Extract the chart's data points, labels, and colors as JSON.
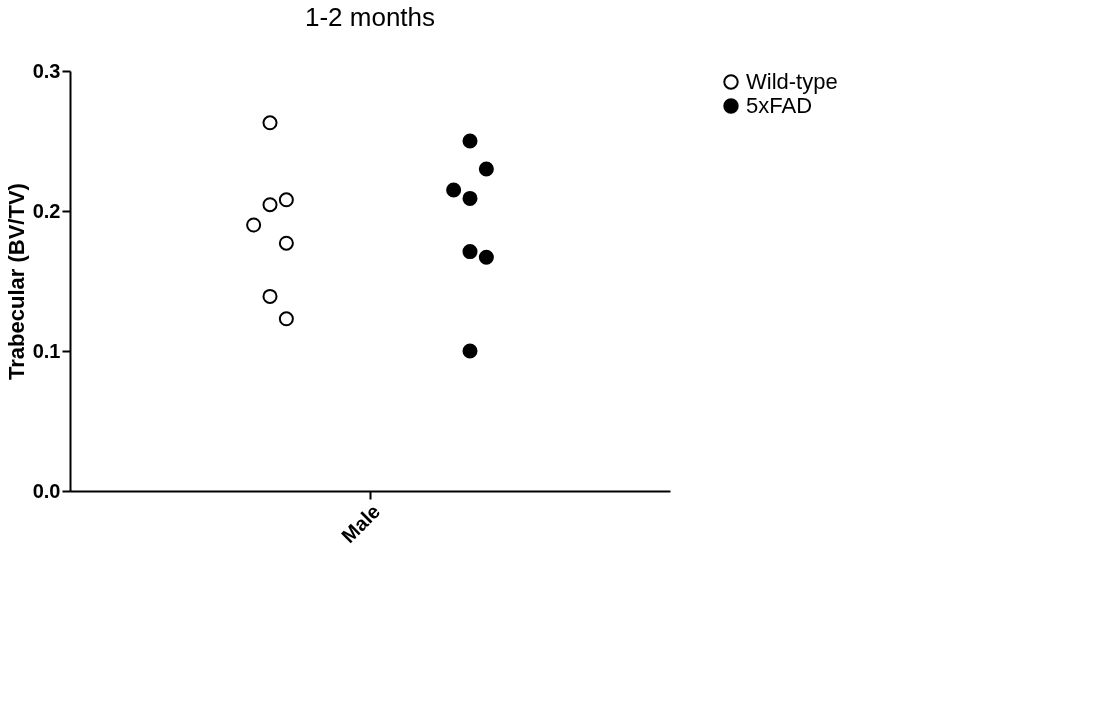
{
  "chart_data": {
    "type": "scatter",
    "title": "1-2 months",
    "ylabel": "Trabecular (BV/TV)",
    "categories": [
      "Male"
    ],
    "series": [
      {
        "name": "Wild-type",
        "color": "#ffffff",
        "x": [
          "Male",
          "Male",
          "Male",
          "Male",
          "Male",
          "Male",
          "Male"
        ],
        "values": [
          0.263,
          0.2045,
          0.208,
          0.19,
          0.177,
          0.139,
          0.123
        ]
      },
      {
        "name": "5xFAD",
        "color": "#000000",
        "x": [
          "Male",
          "Male",
          "Male",
          "Male",
          "Male",
          "Male",
          "Male"
        ],
        "values": [
          0.25,
          0.23,
          0.209,
          0.215,
          0.171,
          0.167,
          0.1
        ]
      }
    ],
    "ylim": [
      0,
      0.3
    ],
    "yticks": [
      {
        "value": 0,
        "label": "0.0"
      },
      0.1,
      0.2,
      0.3
    ],
    "marker": "circle",
    "grid": false,
    "legend": "top right"
  }
}
